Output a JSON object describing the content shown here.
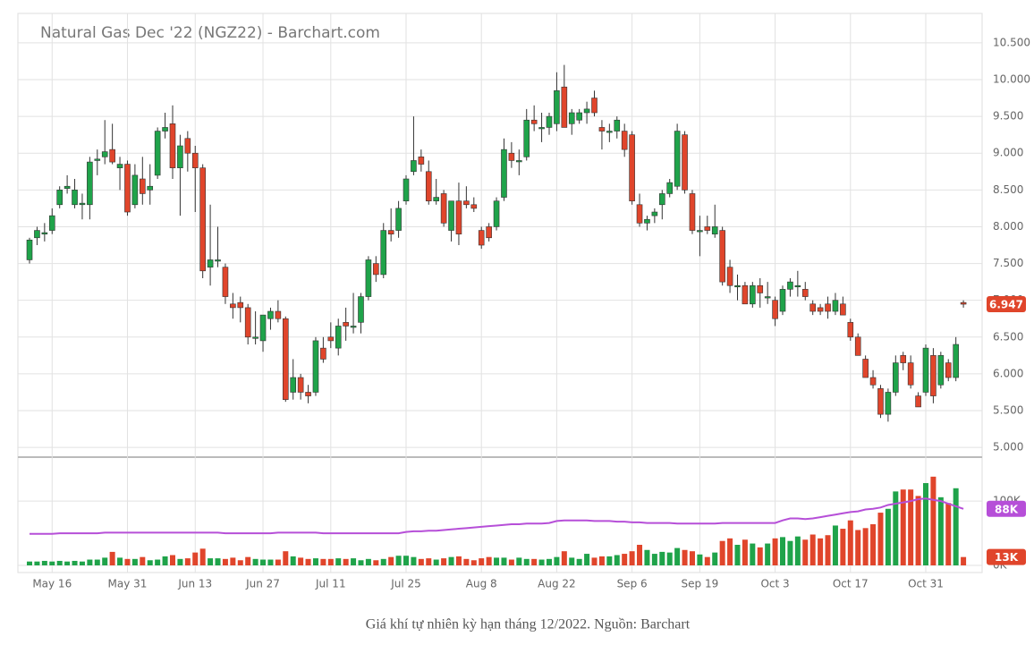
{
  "caption": "Giá khí tự nhiên kỳ hạn tháng 12/2022. Nguồn: Barchart",
  "chart_data": {
    "type": "candlestick",
    "title": "Natural Gas Dec '22 (NGZ22) - Barchart.com",
    "up_color": "#1fa34a",
    "down_color": "#e0452b",
    "grid": true,
    "categories": [
      null,
      null,
      null,
      "May 16",
      null,
      null,
      null,
      null,
      null,
      null,
      null,
      null,
      null,
      "May 31",
      null,
      null,
      null,
      null,
      null,
      null,
      null,
      null,
      "Jun 13",
      null,
      null,
      null,
      null,
      null,
      null,
      null,
      null,
      "Jun 27",
      null,
      null,
      null,
      null,
      null,
      null,
      null,
      null,
      "Jul 11",
      null,
      null,
      null,
      null,
      null,
      null,
      null,
      null,
      null,
      "Jul 25",
      null,
      null,
      null,
      null,
      null,
      null,
      null,
      null,
      null,
      "Aug 8",
      null,
      null,
      null,
      null,
      null,
      null,
      null,
      null,
      null,
      "Aug 22",
      null,
      null,
      null,
      null,
      null,
      null,
      null,
      null,
      null,
      "Sep 6",
      null,
      null,
      null,
      null,
      null,
      null,
      null,
      null,
      "Sep 19",
      null,
      null,
      null,
      null,
      null,
      null,
      null,
      null,
      null,
      "Oct 3",
      null,
      null,
      null,
      null,
      null,
      null,
      null,
      null,
      null,
      "Oct 17",
      null,
      null,
      null,
      null,
      null,
      null,
      null,
      null,
      null,
      "Oct 31",
      null,
      null,
      null,
      null,
      null
    ],
    "ohlc": [
      [
        7.55,
        7.85,
        7.5,
        7.82
      ],
      [
        7.85,
        8.0,
        7.75,
        7.95
      ],
      [
        7.9,
        8.05,
        7.8,
        7.92
      ],
      [
        7.95,
        8.25,
        7.9,
        8.15
      ],
      [
        8.3,
        8.55,
        8.25,
        8.5
      ],
      [
        8.52,
        8.7,
        8.45,
        8.55
      ],
      [
        8.3,
        8.65,
        8.25,
        8.5
      ],
      [
        8.3,
        8.45,
        8.1,
        8.32
      ],
      [
        8.3,
        8.95,
        8.1,
        8.88
      ],
      [
        8.9,
        9.05,
        8.7,
        8.92
      ],
      [
        8.95,
        9.45,
        8.85,
        9.02
      ],
      [
        9.05,
        9.4,
        8.85,
        8.88
      ],
      [
        8.8,
        8.95,
        8.5,
        8.85
      ],
      [
        8.85,
        8.9,
        8.15,
        8.2
      ],
      [
        8.3,
        8.85,
        8.25,
        8.7
      ],
      [
        8.65,
        8.95,
        8.3,
        8.45
      ],
      [
        8.5,
        8.85,
        8.3,
        8.55
      ],
      [
        8.7,
        9.35,
        8.65,
        9.3
      ],
      [
        9.3,
        9.55,
        9.2,
        9.35
      ],
      [
        9.4,
        9.65,
        8.65,
        8.8
      ],
      [
        8.8,
        9.25,
        8.15,
        9.1
      ],
      [
        9.2,
        9.3,
        8.75,
        9.0
      ],
      [
        9.0,
        9.1,
        8.2,
        8.8
      ],
      [
        8.8,
        8.85,
        7.3,
        7.4
      ],
      [
        7.45,
        8.3,
        7.2,
        7.55
      ],
      [
        7.55,
        8.0,
        7.45,
        7.55
      ],
      [
        7.45,
        7.5,
        6.95,
        7.05
      ],
      [
        6.95,
        7.1,
        6.75,
        6.9
      ],
      [
        6.97,
        7.05,
        6.7,
        6.9
      ],
      [
        6.9,
        6.95,
        6.4,
        6.5
      ],
      [
        6.5,
        6.85,
        6.4,
        6.5
      ],
      [
        6.45,
        6.8,
        6.3,
        6.8
      ],
      [
        6.75,
        6.9,
        6.6,
        6.85
      ],
      [
        6.85,
        7.0,
        6.7,
        6.75
      ],
      [
        6.75,
        6.78,
        5.62,
        5.65
      ],
      [
        5.75,
        6.2,
        5.65,
        5.95
      ],
      [
        5.95,
        6.0,
        5.65,
        5.75
      ],
      [
        5.75,
        5.85,
        5.6,
        5.7
      ],
      [
        5.75,
        6.5,
        5.7,
        6.45
      ],
      [
        6.35,
        6.5,
        6.15,
        6.2
      ],
      [
        6.5,
        6.7,
        6.35,
        6.45
      ],
      [
        6.35,
        6.75,
        6.25,
        6.65
      ],
      [
        6.7,
        6.9,
        6.45,
        6.65
      ],
      [
        6.65,
        7.1,
        6.55,
        6.65
      ],
      [
        6.7,
        7.1,
        6.55,
        7.05
      ],
      [
        7.05,
        7.6,
        7.0,
        7.55
      ],
      [
        7.5,
        7.6,
        7.25,
        7.35
      ],
      [
        7.35,
        8.05,
        7.3,
        7.95
      ],
      [
        7.95,
        8.25,
        7.8,
        7.9
      ],
      [
        7.95,
        8.35,
        7.85,
        8.25
      ],
      [
        8.35,
        8.7,
        8.3,
        8.65
      ],
      [
        8.75,
        9.5,
        8.7,
        8.9
      ],
      [
        8.95,
        9.05,
        8.75,
        8.85
      ],
      [
        8.75,
        8.9,
        8.3,
        8.35
      ],
      [
        8.35,
        8.65,
        8.3,
        8.4
      ],
      [
        8.45,
        8.5,
        8.0,
        8.05
      ],
      [
        7.95,
        8.35,
        7.8,
        8.35
      ],
      [
        8.35,
        8.6,
        7.75,
        7.9
      ],
      [
        8.35,
        8.55,
        8.25,
        8.3
      ],
      [
        8.3,
        8.4,
        8.2,
        8.25
      ],
      [
        7.95,
        8.0,
        7.7,
        7.75
      ],
      [
        8.0,
        8.05,
        7.8,
        7.85
      ],
      [
        8.0,
        8.4,
        7.95,
        8.35
      ],
      [
        8.4,
        9.2,
        8.35,
        9.05
      ],
      [
        9.0,
        9.15,
        8.8,
        8.9
      ],
      [
        8.9,
        9.05,
        8.7,
        8.9
      ],
      [
        8.95,
        9.6,
        8.9,
        9.45
      ],
      [
        9.45,
        9.65,
        9.3,
        9.4
      ],
      [
        9.35,
        9.55,
        9.15,
        9.35
      ],
      [
        9.35,
        9.55,
        9.25,
        9.5
      ],
      [
        9.4,
        10.1,
        9.3,
        9.85
      ],
      [
        9.9,
        10.2,
        9.35,
        9.35
      ],
      [
        9.4,
        9.6,
        9.25,
        9.55
      ],
      [
        9.45,
        9.6,
        9.4,
        9.55
      ],
      [
        9.55,
        9.7,
        9.4,
        9.6
      ],
      [
        9.75,
        9.85,
        9.5,
        9.55
      ],
      [
        9.35,
        9.45,
        9.05,
        9.3
      ],
      [
        9.3,
        9.4,
        9.15,
        9.3
      ],
      [
        9.3,
        9.5,
        9.2,
        9.45
      ],
      [
        9.3,
        9.4,
        8.95,
        9.05
      ],
      [
        9.25,
        9.3,
        8.3,
        8.35
      ],
      [
        8.3,
        8.45,
        8.0,
        8.05
      ],
      [
        8.05,
        8.15,
        7.95,
        8.1
      ],
      [
        8.15,
        8.25,
        8.05,
        8.2
      ],
      [
        8.3,
        8.5,
        8.1,
        8.45
      ],
      [
        8.45,
        8.65,
        8.4,
        8.6
      ],
      [
        8.55,
        9.4,
        8.5,
        9.3
      ],
      [
        9.25,
        9.3,
        8.45,
        8.5
      ],
      [
        8.45,
        8.5,
        7.9,
        7.95
      ],
      [
        7.95,
        8.15,
        7.6,
        7.95
      ],
      [
        8.0,
        8.15,
        7.9,
        7.95
      ],
      [
        7.9,
        8.3,
        7.85,
        8.0
      ],
      [
        7.95,
        8.0,
        7.2,
        7.25
      ],
      [
        7.45,
        7.55,
        7.1,
        7.2
      ],
      [
        7.2,
        7.35,
        7.0,
        7.2
      ],
      [
        7.2,
        7.25,
        6.95,
        6.95
      ],
      [
        6.95,
        7.25,
        6.9,
        7.2
      ],
      [
        7.2,
        7.3,
        6.9,
        7.1
      ],
      [
        7.05,
        7.25,
        6.95,
        7.05
      ],
      [
        7.0,
        7.05,
        6.65,
        6.75
      ],
      [
        6.85,
        7.2,
        6.8,
        7.15
      ],
      [
        7.15,
        7.3,
        7.05,
        7.25
      ],
      [
        7.2,
        7.4,
        7.05,
        7.2
      ],
      [
        7.15,
        7.25,
        7.0,
        7.05
      ],
      [
        6.95,
        7.0,
        6.8,
        6.85
      ],
      [
        6.9,
        6.95,
        6.8,
        6.85
      ],
      [
        6.95,
        7.05,
        6.75,
        6.85
      ],
      [
        6.85,
        7.1,
        6.8,
        7.0
      ],
      [
        6.95,
        7.05,
        6.8,
        6.8
      ],
      [
        6.7,
        6.75,
        6.45,
        6.5
      ],
      [
        6.5,
        6.55,
        6.25,
        6.25
      ],
      [
        6.2,
        6.25,
        5.95,
        5.95
      ],
      [
        5.95,
        6.05,
        5.8,
        5.85
      ],
      [
        5.8,
        5.85,
        5.4,
        5.45
      ],
      [
        5.45,
        5.8,
        5.35,
        5.75
      ],
      [
        5.75,
        6.25,
        5.7,
        6.15
      ],
      [
        6.25,
        6.3,
        6.05,
        6.15
      ],
      [
        6.15,
        6.25,
        5.8,
        5.85
      ],
      [
        5.7,
        5.75,
        5.55,
        5.55
      ],
      [
        5.75,
        6.4,
        5.7,
        6.35
      ],
      [
        6.25,
        6.35,
        5.6,
        5.7
      ],
      [
        5.85,
        6.3,
        5.8,
        6.25
      ],
      [
        6.15,
        6.2,
        5.9,
        5.95
      ],
      [
        5.95,
        6.5,
        5.9,
        6.4
      ],
      [
        6.97,
        7.0,
        6.9,
        6.947
      ]
    ],
    "ylim": [
      4.88,
      10.9
    ],
    "yticks": [
      {
        "value": 5,
        "label": "5.000"
      },
      {
        "value": 5.5,
        "label": "5.500"
      },
      {
        "value": 6,
        "label": "6.000"
      },
      {
        "value": 6.5,
        "label": "6.500"
      },
      {
        "value": 7,
        "label": "7.000"
      },
      {
        "value": 7.5,
        "label": "7.500"
      },
      {
        "value": 8,
        "label": "8.000"
      },
      {
        "value": 8.5,
        "label": "8.500"
      },
      {
        "value": 9,
        "label": "9.000"
      },
      {
        "value": 9.5,
        "label": "9.500"
      },
      {
        "value": 10,
        "label": "10.000"
      },
      {
        "value": 10.5,
        "label": "10.500"
      }
    ],
    "volume": {
      "values": [
        6,
        6,
        7,
        6,
        7,
        6,
        7,
        6,
        9,
        9,
        12,
        21,
        12,
        10,
        10,
        13,
        8,
        9,
        14,
        16,
        10,
        11,
        20,
        26,
        11,
        11,
        10,
        12,
        8,
        13,
        10,
        9,
        9,
        9,
        22,
        14,
        12,
        10,
        11,
        10,
        10,
        11,
        10,
        11,
        8,
        10,
        8,
        10,
        13,
        15,
        15,
        13,
        10,
        11,
        9,
        11,
        13,
        14,
        10,
        8,
        11,
        13,
        12,
        12,
        9,
        12,
        10,
        10,
        9,
        10,
        13,
        22,
        12,
        10,
        18,
        12,
        14,
        14,
        16,
        18,
        22,
        32,
        24,
        18,
        21,
        20,
        27,
        24,
        22,
        17,
        13,
        20,
        38,
        42,
        32,
        40,
        34,
        28,
        34,
        42,
        44,
        38,
        45,
        40,
        48,
        42,
        47,
        62,
        57,
        70,
        55,
        58,
        64,
        82,
        88,
        115,
        118,
        118,
        108,
        128,
        138,
        106,
        97,
        120,
        13
      ],
      "last_label": "13K",
      "ma": [
        49,
        49,
        49,
        49,
        50,
        50,
        50,
        50,
        50,
        50,
        51,
        51,
        51,
        51,
        51,
        51,
        51,
        51,
        51,
        51,
        51,
        51,
        51,
        51,
        51,
        51,
        50,
        50,
        50,
        50,
        50,
        50,
        50,
        51,
        51,
        51,
        51,
        51,
        51,
        50,
        50,
        50,
        50,
        50,
        50,
        50,
        50,
        50,
        50,
        50,
        52,
        53,
        53,
        54,
        54,
        55,
        56,
        57,
        58,
        59,
        60,
        61,
        62,
        63,
        64,
        64,
        65,
        65,
        65,
        66,
        69,
        70,
        70,
        70,
        70,
        69,
        69,
        69,
        68,
        68,
        67,
        67,
        66,
        66,
        66,
        66,
        65,
        65,
        65,
        65,
        65,
        65,
        66,
        66,
        66,
        66,
        66,
        66,
        66,
        66,
        70,
        73,
        73,
        72,
        73,
        75,
        77,
        79,
        81,
        83,
        84,
        87,
        88,
        90,
        94,
        96,
        98,
        100,
        103,
        104,
        102,
        100,
        96,
        92,
        88
      ],
      "ma_color": "#b64fd8",
      "ma_last_label": "88K",
      "ylim": [
        0,
        167
      ],
      "yticks": [
        {
          "value": 0,
          "label": "0K"
        },
        {
          "value": 100,
          "label": "100K"
        }
      ]
    }
  }
}
